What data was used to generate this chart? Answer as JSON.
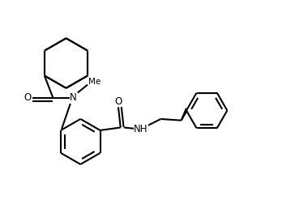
{
  "background_color": "#ffffff",
  "line_color": "#000000",
  "line_width": 1.5,
  "font_size": 8.5,
  "figsize": [
    3.59,
    2.68
  ],
  "dpi": 100,
  "xlim": [
    0,
    10
  ],
  "ylim": [
    0,
    7.5
  ]
}
